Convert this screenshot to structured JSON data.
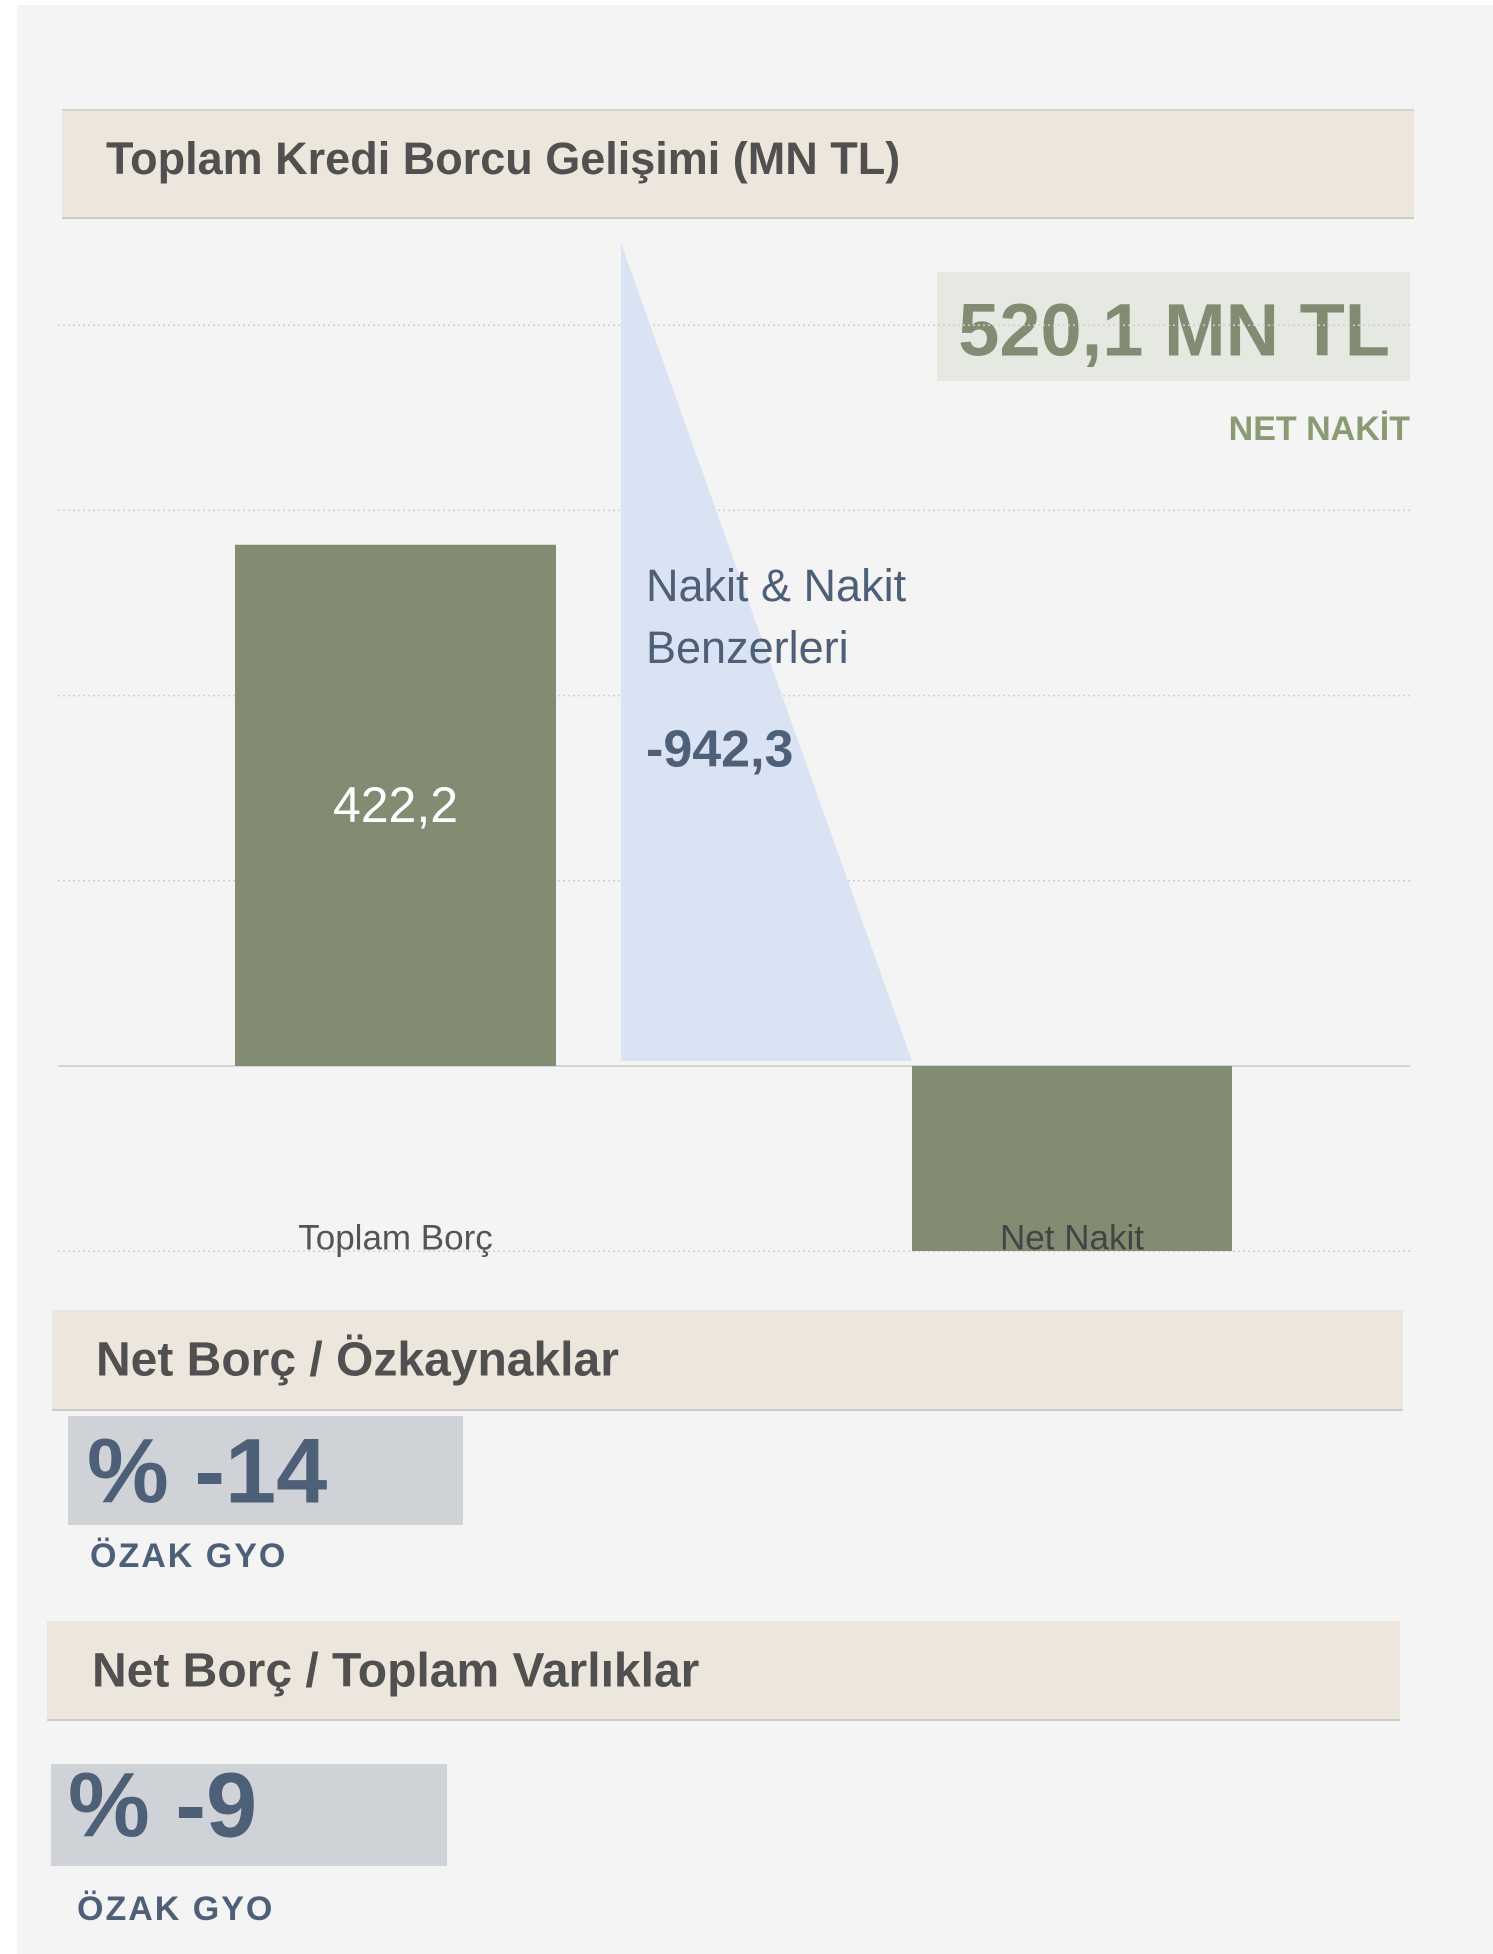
{
  "chart_data": {
    "type": "waterfall",
    "title": "Toplam Kredi Borcu Gelişimi (MN TL)",
    "categories": [
      "Toplam Borç",
      "Nakit & Nakit Benzerleri",
      "Net Nakit"
    ],
    "values": [
      422.2,
      -942.3,
      -520.1
    ],
    "value_labels": [
      "422,2",
      "-942,3",
      "520,1 MN TL"
    ],
    "net_caption": "NET NAKİT",
    "color": "#818c73",
    "flow_color": "#dae3f3",
    "ylim": [
      -150,
      600
    ],
    "yticks": [
      -150,
      0,
      150,
      300,
      450,
      600
    ],
    "grid": true
  },
  "ratios": [
    {
      "title": "Net Borç / Özkaynaklar",
      "value": "% -14",
      "caption": "ÖZAK GYO"
    },
    {
      "title": "Net Borç / Toplam Varlıklar",
      "value": "% -9",
      "caption": "ÖZAK GYO"
    }
  ]
}
